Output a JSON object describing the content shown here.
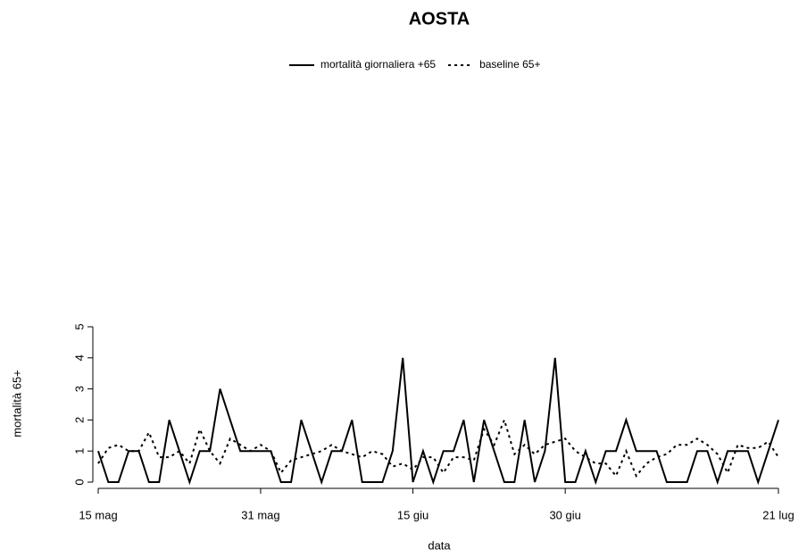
{
  "chart_data": {
    "type": "line",
    "title": "AOSTA",
    "xlabel": "data",
    "ylabel": "mortalità 65+",
    "legend": "top",
    "categories": [
      "15 mag",
      null,
      null,
      null,
      null,
      null,
      null,
      null,
      null,
      null,
      null,
      null,
      null,
      null,
      null,
      null,
      "31 mag",
      null,
      null,
      null,
      null,
      null,
      null,
      null,
      null,
      null,
      null,
      null,
      null,
      null,
      null,
      "15 giu",
      null,
      null,
      null,
      null,
      null,
      null,
      null,
      null,
      null,
      null,
      null,
      null,
      null,
      null,
      "30 giu",
      null,
      null,
      null,
      null,
      null,
      null,
      null,
      null,
      null,
      null,
      null,
      null,
      null,
      null,
      null,
      null,
      null,
      null,
      null,
      null,
      "21 lug"
    ],
    "series": [
      {
        "name": "mortalità giornaliera +65",
        "color": "#000000",
        "linestyle": "solid",
        "values": [
          1,
          0,
          0,
          1,
          1,
          0,
          0,
          2,
          1,
          0,
          1,
          1,
          3,
          2,
          1,
          1,
          1,
          1,
          0,
          0,
          2,
          1,
          0,
          1,
          1,
          2,
          0,
          0,
          0,
          1,
          4,
          0,
          1,
          0,
          1,
          1,
          2,
          0,
          2,
          1,
          0,
          0,
          2,
          0,
          1,
          4,
          0,
          0,
          1,
          0,
          1,
          1,
          2,
          1,
          1,
          1,
          0,
          0,
          0,
          1,
          1,
          0,
          1,
          1,
          1,
          0,
          1,
          2
        ]
      },
      {
        "name": "baseline 65+",
        "color": "#000000",
        "linestyle": "dotted",
        "values": [
          0.6,
          1.1,
          1.2,
          1.0,
          1.0,
          1.6,
          0.8,
          0.8,
          1.0,
          0.6,
          1.7,
          1.0,
          0.6,
          1.4,
          1.2,
          1.0,
          1.2,
          1.0,
          0.3,
          0.7,
          0.8,
          0.9,
          1.0,
          1.2,
          1.0,
          0.9,
          0.8,
          1.0,
          0.9,
          0.5,
          0.6,
          0.4,
          0.8,
          0.8,
          0.3,
          0.8,
          0.8,
          0.7,
          1.7,
          1.2,
          2.0,
          0.9,
          1.2,
          0.9,
          1.2,
          1.3,
          1.4,
          1.0,
          0.8,
          0.6,
          0.6,
          0.2,
          1.0,
          0.2,
          0.6,
          0.8,
          0.9,
          1.2,
          1.2,
          1.4,
          1.2,
          0.9,
          0.3,
          1.2,
          1.1,
          1.1,
          1.3,
          0.8
        ]
      }
    ],
    "ylim": [
      0,
      5
    ],
    "yticks": [
      0,
      1,
      2,
      3,
      4,
      5
    ]
  }
}
